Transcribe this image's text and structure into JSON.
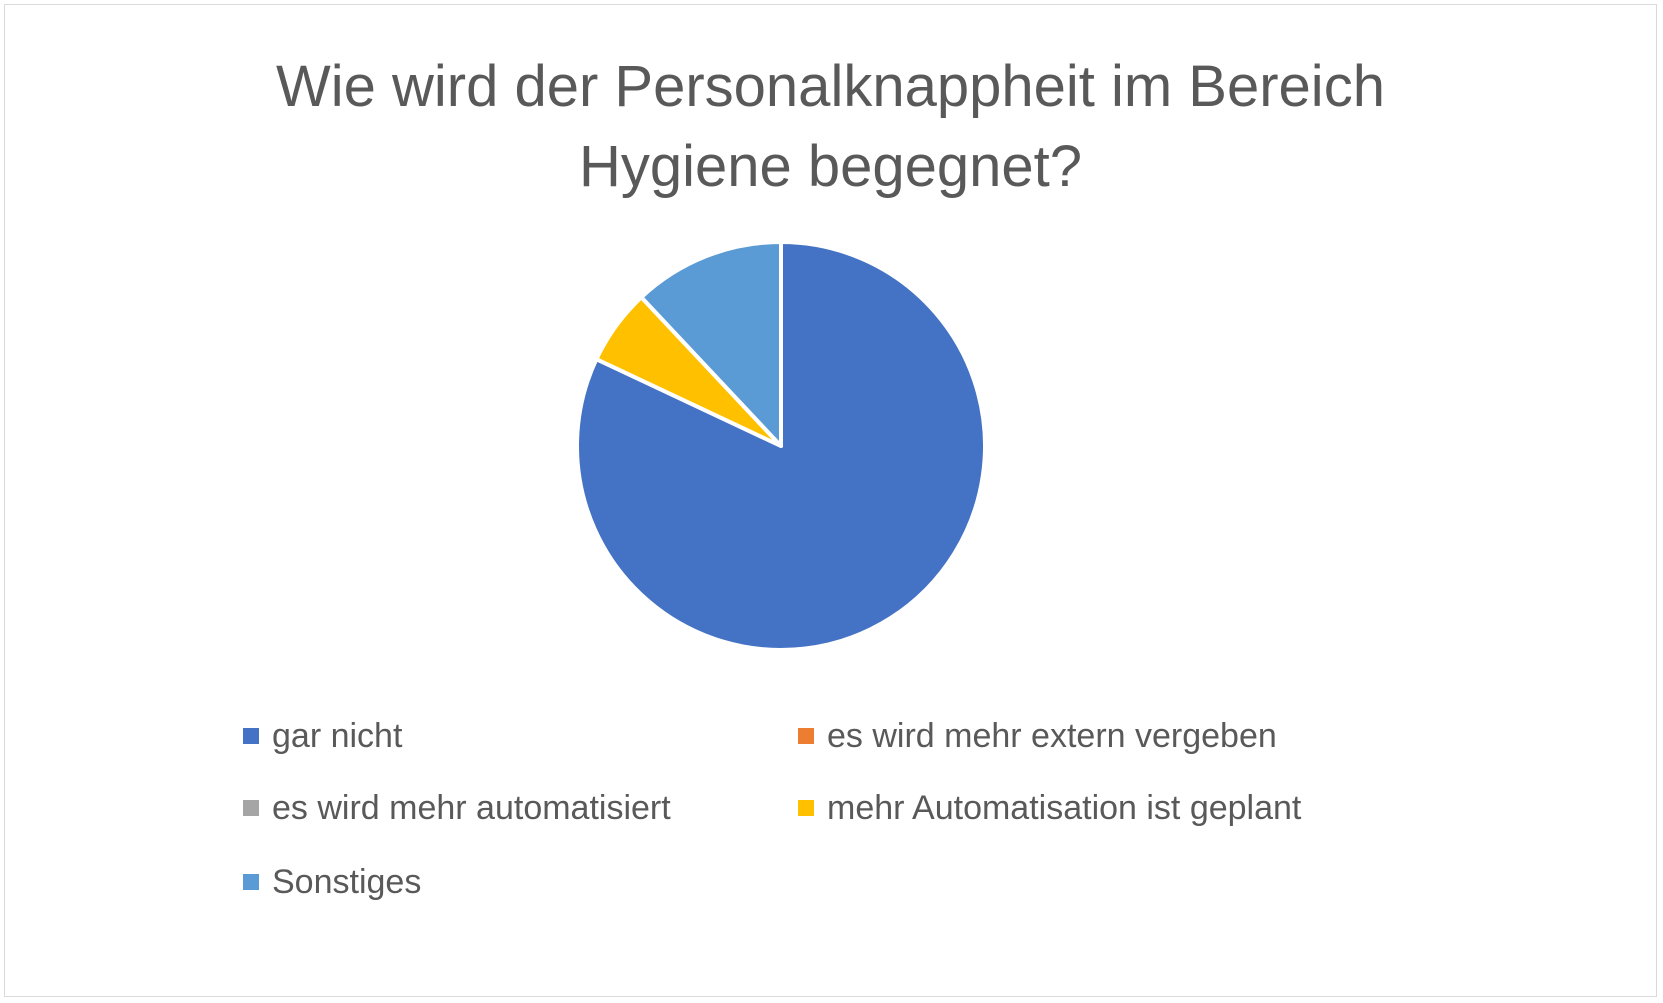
{
  "chart_data": {
    "type": "pie",
    "title": "Wie wird der Personalknappheit im Bereich Hygiene begegnet?",
    "title_lines": [
      "Wie wird der Personalknappheit im Bereich",
      "Hygiene begegnet?"
    ],
    "categories": [
      "gar nicht",
      "es wird mehr extern vergeben",
      "es wird mehr automatisiert",
      "mehr Automatisation ist geplant",
      "Sonstiges"
    ],
    "values": [
      82,
      0,
      0,
      6,
      12
    ],
    "colors": [
      "#4472C4",
      "#ED7D31",
      "#A5A5A5",
      "#FFC000",
      "#5B9BD5"
    ],
    "legend_position": "bottom",
    "start_angle": "top, clockwise"
  }
}
